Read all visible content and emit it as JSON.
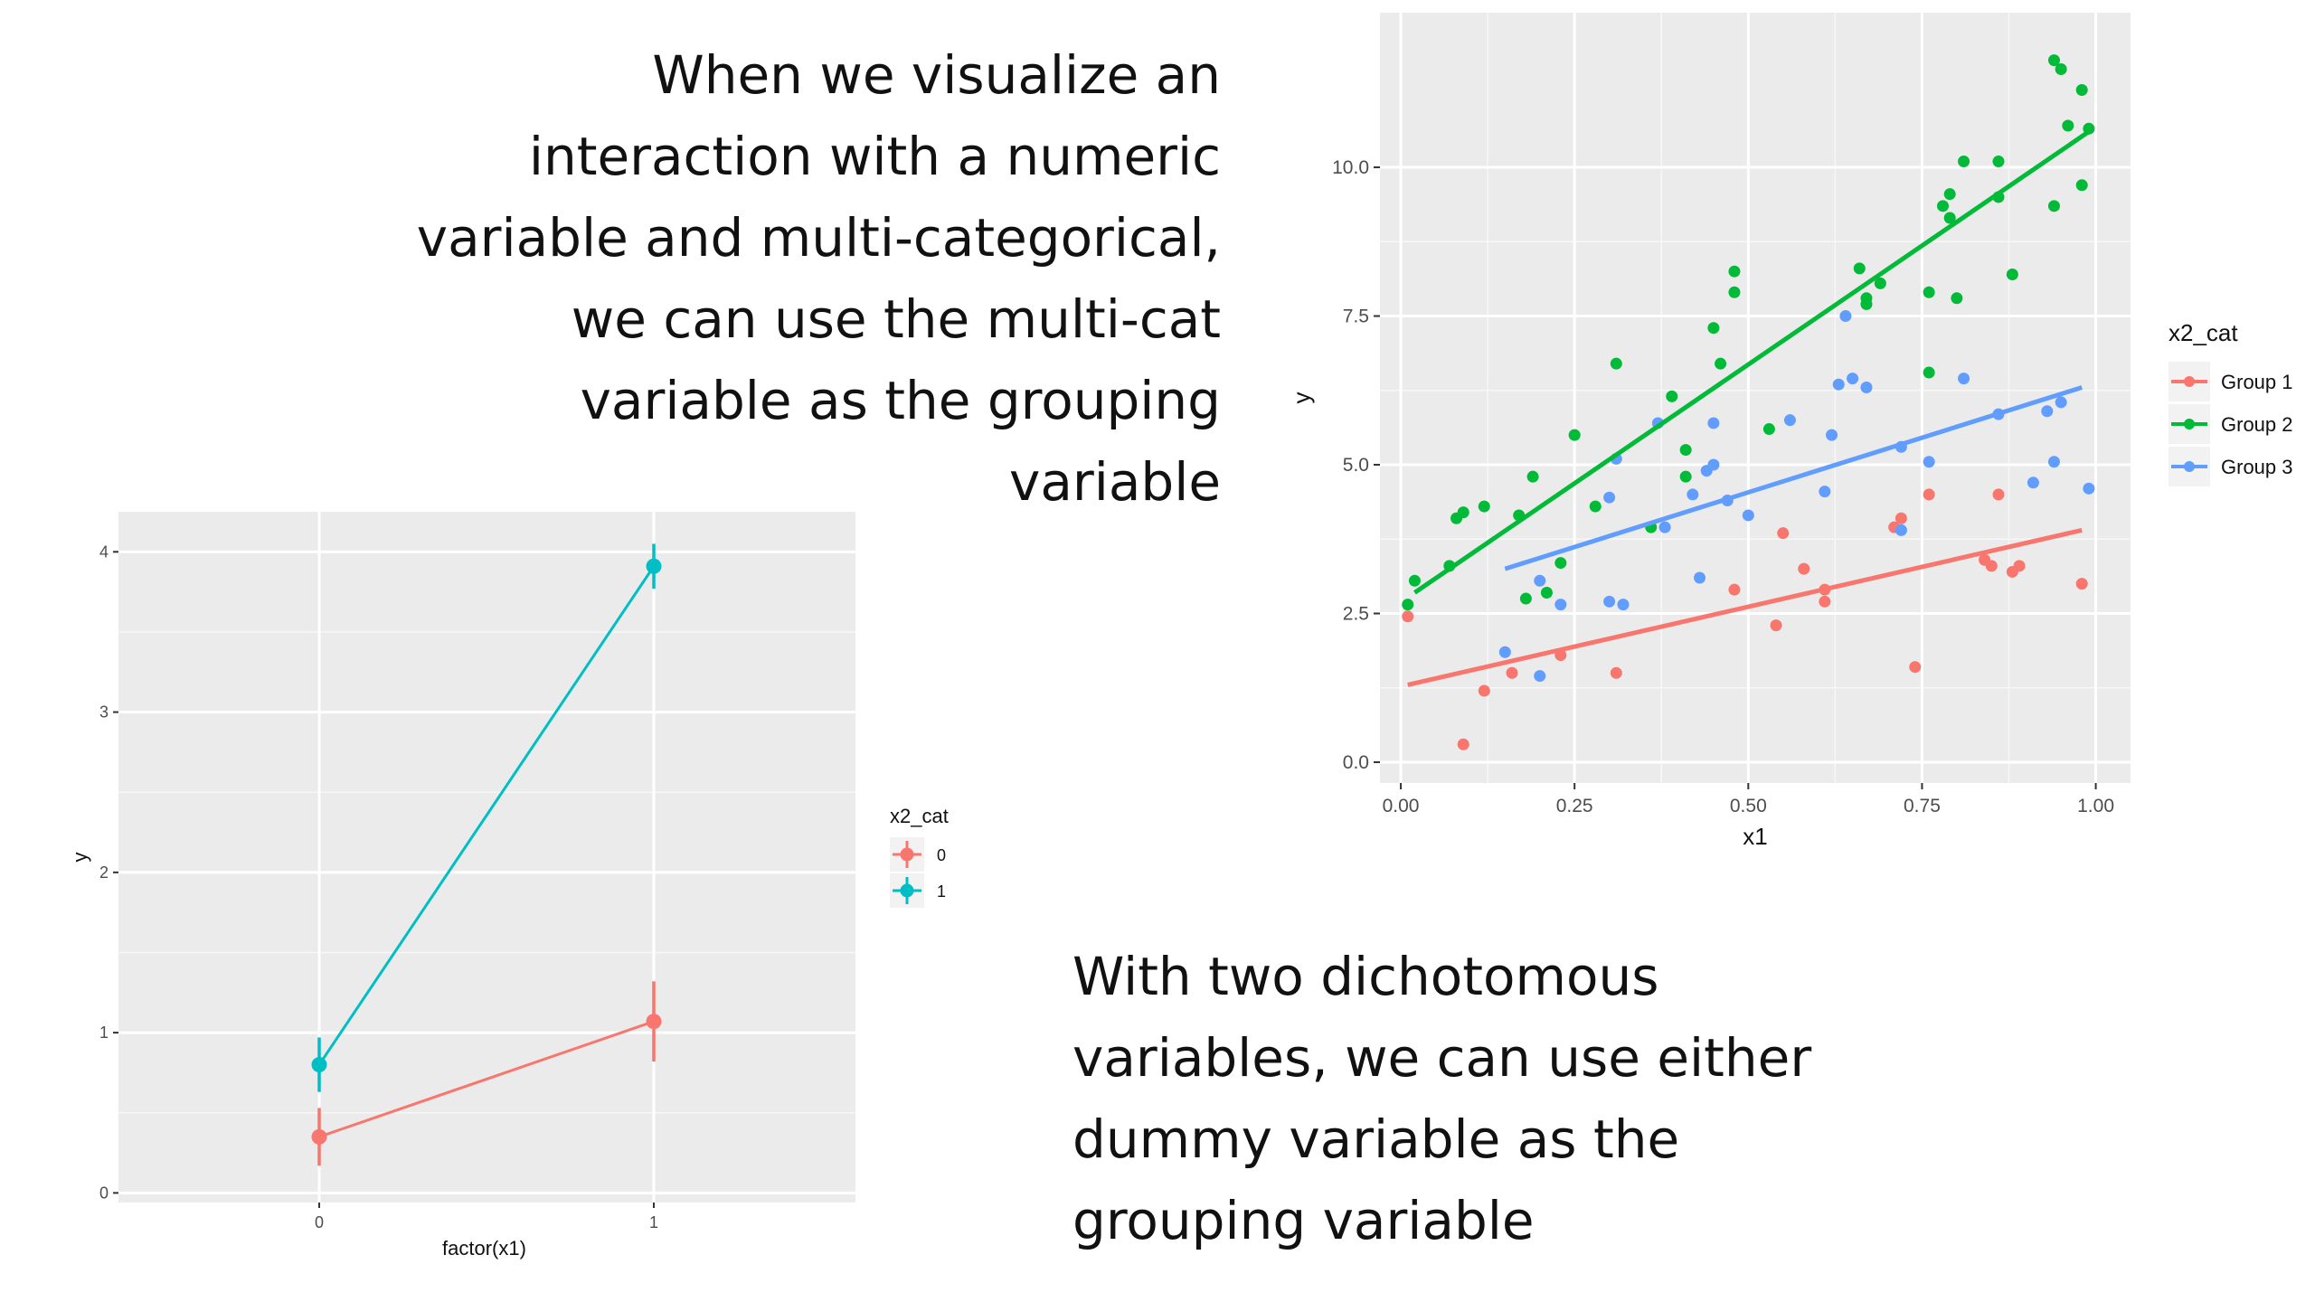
{
  "slide": {
    "top_text": [
      "When we visualize an",
      "interaction with a numeric",
      "variable and multi-categorical,",
      "we can use the multi-cat",
      "variable as the grouping",
      "variable"
    ],
    "bottom_text": [
      "With two dichotomous",
      "variables, we can use either",
      "dummy variable as the",
      "grouping variable"
    ]
  },
  "colors": {
    "panel_bg": "#ebebeb",
    "grid": "#ffffff",
    "group1": "#f8766d",
    "group2": "#00ba38",
    "group3": "#619cff",
    "cat0": "#f8766d",
    "cat1": "#00bfc4"
  },
  "chart_data": [
    {
      "type": "scatter",
      "xlabel": "x1",
      "ylabel": "y",
      "xlim": [
        -0.03,
        1.05
      ],
      "ylim": [
        -0.35,
        12.6
      ],
      "x_ticks": [
        0.0,
        0.25,
        0.5,
        0.75,
        1.0
      ],
      "x_tick_labels": [
        "0.00",
        "0.25",
        "0.50",
        "0.75",
        "1.00"
      ],
      "y_ticks": [
        0.0,
        2.5,
        5.0,
        7.5,
        10.0
      ],
      "y_tick_labels": [
        "0.0",
        "2.5",
        "5.0",
        "7.5",
        "10.0"
      ],
      "grid": true,
      "legend": {
        "title": "x2_cat",
        "position": "right"
      },
      "series": [
        {
          "name": "Group 1",
          "color": "#f8766d",
          "fit": [
            [
              0.01,
              1.3
            ],
            [
              0.98,
              3.9
            ]
          ],
          "points": [
            [
              0.01,
              2.45
            ],
            [
              0.09,
              0.3
            ],
            [
              0.12,
              1.2
            ],
            [
              0.16,
              1.5
            ],
            [
              0.23,
              1.8
            ],
            [
              0.31,
              1.5
            ],
            [
              0.48,
              2.9
            ],
            [
              0.54,
              2.3
            ],
            [
              0.55,
              3.85
            ],
            [
              0.58,
              3.25
            ],
            [
              0.61,
              2.7
            ],
            [
              0.61,
              2.9
            ],
            [
              0.71,
              3.95
            ],
            [
              0.72,
              4.1
            ],
            [
              0.74,
              1.6
            ],
            [
              0.76,
              4.5
            ],
            [
              0.84,
              3.4
            ],
            [
              0.85,
              3.3
            ],
            [
              0.86,
              4.5
            ],
            [
              0.88,
              3.2
            ],
            [
              0.89,
              3.3
            ],
            [
              0.98,
              3.0
            ]
          ]
        },
        {
          "name": "Group 2",
          "color": "#00ba38",
          "fit": [
            [
              0.02,
              2.85
            ],
            [
              0.99,
              10.6
            ]
          ],
          "points": [
            [
              0.01,
              2.65
            ],
            [
              0.02,
              3.05
            ],
            [
              0.07,
              3.3
            ],
            [
              0.08,
              4.1
            ],
            [
              0.09,
              4.2
            ],
            [
              0.12,
              4.3
            ],
            [
              0.17,
              4.15
            ],
            [
              0.18,
              2.75
            ],
            [
              0.19,
              4.8
            ],
            [
              0.21,
              2.85
            ],
            [
              0.23,
              3.35
            ],
            [
              0.25,
              5.5
            ],
            [
              0.28,
              4.3
            ],
            [
              0.31,
              6.7
            ],
            [
              0.36,
              3.95
            ],
            [
              0.39,
              6.15
            ],
            [
              0.41,
              5.25
            ],
            [
              0.41,
              4.8
            ],
            [
              0.45,
              7.3
            ],
            [
              0.46,
              6.7
            ],
            [
              0.48,
              7.9
            ],
            [
              0.48,
              8.25
            ],
            [
              0.53,
              5.6
            ],
            [
              0.66,
              8.3
            ],
            [
              0.67,
              7.8
            ],
            [
              0.67,
              7.7
            ],
            [
              0.69,
              8.05
            ],
            [
              0.76,
              6.55
            ],
            [
              0.76,
              7.9
            ],
            [
              0.78,
              9.35
            ],
            [
              0.79,
              9.55
            ],
            [
              0.79,
              9.15
            ],
            [
              0.8,
              7.8
            ],
            [
              0.81,
              10.1
            ],
            [
              0.86,
              10.1
            ],
            [
              0.86,
              9.5
            ],
            [
              0.88,
              8.2
            ],
            [
              0.94,
              9.35
            ],
            [
              0.94,
              11.8
            ],
            [
              0.95,
              11.65
            ],
            [
              0.96,
              10.7
            ],
            [
              0.98,
              11.3
            ],
            [
              0.98,
              9.7
            ],
            [
              0.99,
              10.65
            ]
          ]
        },
        {
          "name": "Group 3",
          "color": "#619cff",
          "fit": [
            [
              0.15,
              3.25
            ],
            [
              0.98,
              6.3
            ]
          ],
          "points": [
            [
              0.15,
              1.85
            ],
            [
              0.2,
              1.45
            ],
            [
              0.2,
              3.05
            ],
            [
              0.23,
              2.65
            ],
            [
              0.3,
              2.7
            ],
            [
              0.3,
              4.45
            ],
            [
              0.31,
              5.1
            ],
            [
              0.32,
              2.65
            ],
            [
              0.37,
              5.7
            ],
            [
              0.38,
              3.95
            ],
            [
              0.42,
              4.5
            ],
            [
              0.43,
              3.1
            ],
            [
              0.44,
              4.9
            ],
            [
              0.45,
              5.0
            ],
            [
              0.45,
              5.7
            ],
            [
              0.47,
              4.4
            ],
            [
              0.5,
              4.15
            ],
            [
              0.56,
              5.75
            ],
            [
              0.61,
              4.55
            ],
            [
              0.62,
              5.5
            ],
            [
              0.63,
              6.35
            ],
            [
              0.64,
              7.5
            ],
            [
              0.65,
              6.45
            ],
            [
              0.67,
              6.3
            ],
            [
              0.72,
              3.9
            ],
            [
              0.72,
              5.3
            ],
            [
              0.76,
              5.05
            ],
            [
              0.81,
              6.45
            ],
            [
              0.86,
              5.85
            ],
            [
              0.91,
              4.7
            ],
            [
              0.93,
              5.9
            ],
            [
              0.94,
              5.05
            ],
            [
              0.95,
              6.05
            ],
            [
              0.99,
              4.6
            ]
          ]
        }
      ]
    },
    {
      "type": "line",
      "xlabel": "factor(x1)",
      "ylabel": "y",
      "categories": [
        "0",
        "1"
      ],
      "ylim": [
        -0.06,
        4.25
      ],
      "y_ticks": [
        0,
        1,
        2,
        3,
        4
      ],
      "y_tick_labels": [
        "0",
        "1",
        "2",
        "3",
        "4"
      ],
      "grid": true,
      "legend": {
        "title": "x2_cat",
        "position": "right"
      },
      "series": [
        {
          "name": "0",
          "color": "#f8766d",
          "values": [
            0.35,
            1.07
          ],
          "lower": [
            0.17,
            0.82
          ],
          "upper": [
            0.53,
            1.32
          ]
        },
        {
          "name": "1",
          "color": "#00bfc4",
          "values": [
            0.8,
            3.91
          ],
          "lower": [
            0.63,
            3.77
          ],
          "upper": [
            0.97,
            4.05
          ]
        }
      ]
    }
  ]
}
